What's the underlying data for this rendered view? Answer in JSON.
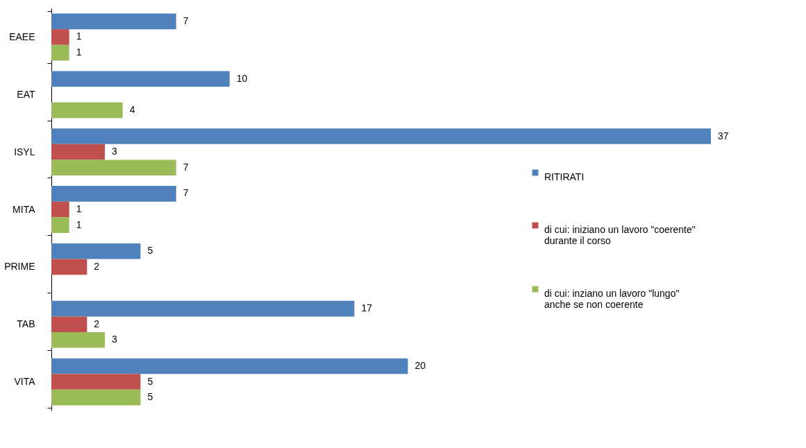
{
  "chart_data": {
    "type": "bar",
    "orientation": "horizontal",
    "categories": [
      "EAEE",
      "EAT",
      "ISYL",
      "MITA",
      "PRIME",
      "TAB",
      "VITA"
    ],
    "series": [
      {
        "name": "RITIRATI",
        "color": "#4f81bd",
        "values": [
          7,
          10,
          37,
          7,
          5,
          17,
          20
        ]
      },
      {
        "name": "di cui: iniziano un lavoro \"coerente\" durante il corso",
        "color": "#c0504d",
        "values": [
          1,
          null,
          3,
          1,
          2,
          2,
          5
        ]
      },
      {
        "name": "di cui: inziano un lavoro \"lungo\" anche se non coerente",
        "color": "#9bbb59",
        "values": [
          1,
          4,
          7,
          1,
          null,
          3,
          5
        ]
      }
    ],
    "data_labels": true,
    "legend": "right",
    "tick_labels": "y"
  }
}
